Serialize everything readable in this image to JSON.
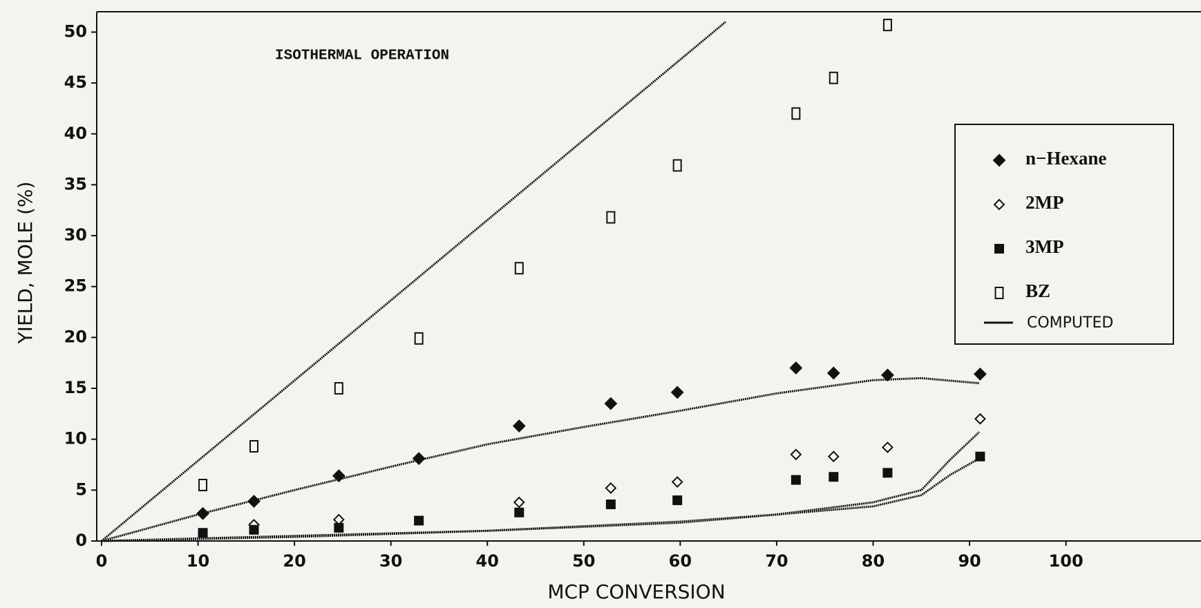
{
  "chart_data": {
    "type": "scatter",
    "annotation": "ISOTHERMAL OPERATION",
    "x_label": "MCP CONVERSION",
    "y_label": "YIELD, MOLE (%)",
    "xlim": [
      0,
      114
    ],
    "ylim": [
      0,
      52
    ],
    "xticks": [
      0,
      10,
      20,
      30,
      40,
      50,
      60,
      70,
      80,
      90,
      100
    ],
    "yticks": [
      0,
      5,
      10,
      15,
      20,
      25,
      30,
      35,
      40,
      45,
      50
    ],
    "legend": "right",
    "color": "#111111",
    "x": [
      10.5,
      15.8,
      24.6,
      32.9,
      43.3,
      52.8,
      59.7,
      72.0,
      75.9,
      81.5,
      91.1
    ],
    "series": [
      {
        "name": "n−Hexane",
        "marker": "diamond-filled",
        "values": [
          2.7,
          3.9,
          6.4,
          8.1,
          11.3,
          13.5,
          14.6,
          17.0,
          16.5,
          16.3,
          16.4
        ]
      },
      {
        "name": "2MP",
        "marker": "diamond-open",
        "values": [
          null,
          1.6,
          2.1,
          null,
          3.8,
          5.2,
          5.8,
          8.5,
          8.3,
          9.2,
          12.0
        ]
      },
      {
        "name": "3MP",
        "marker": "square-filled",
        "values": [
          0.8,
          1.1,
          1.3,
          2.0,
          2.8,
          3.6,
          4.0,
          6.0,
          6.3,
          6.7,
          8.3
        ]
      },
      {
        "name": "BZ",
        "marker": "square-open",
        "values": [
          5.5,
          9.3,
          15.0,
          19.9,
          26.8,
          31.8,
          36.9,
          42.0,
          45.5,
          50.7,
          null
        ]
      }
    ],
    "computed_name": "COMPUTED",
    "computed": [
      {
        "x": [
          0,
          64.7
        ],
        "values": [
          0,
          51
        ]
      },
      {
        "x": [
          0,
          10,
          20,
          30,
          40,
          50,
          60,
          70,
          80,
          85,
          91
        ],
        "values": [
          0,
          2.6,
          5.0,
          7.3,
          9.5,
          11.2,
          12.8,
          14.5,
          15.8,
          16.0,
          15.5
        ]
      },
      {
        "x": [
          0,
          20,
          40,
          60,
          70,
          80,
          85,
          88,
          91
        ],
        "values": [
          0,
          0.4,
          1.0,
          1.9,
          2.6,
          3.8,
          5.0,
          8.0,
          10.7
        ]
      },
      {
        "x": [
          0,
          40,
          60,
          80,
          85,
          88,
          91
        ],
        "values": [
          0,
          1.0,
          1.8,
          3.4,
          4.5,
          6.5,
          8.1
        ]
      }
    ]
  }
}
